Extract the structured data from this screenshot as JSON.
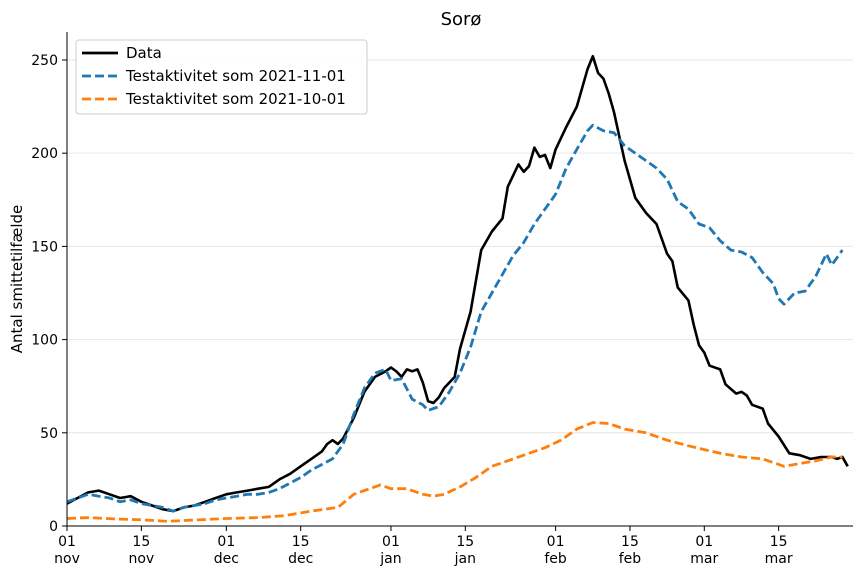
{
  "chart_data": {
    "type": "line",
    "title": "Sorø",
    "xlabel": "",
    "ylabel": "Antal smittetilfælde",
    "xlim": [
      "2021-11-01",
      "2022-03-29"
    ],
    "ylim": [
      0,
      265
    ],
    "grid": "horizontal",
    "legend_position": "top-left",
    "x_ticks": [
      {
        "date": "2021-11-01",
        "day": "01",
        "month": "nov"
      },
      {
        "date": "2021-11-15",
        "day": "15",
        "month": "nov"
      },
      {
        "date": "2021-12-01",
        "day": "01",
        "month": "dec"
      },
      {
        "date": "2021-12-15",
        "day": "15",
        "month": "dec"
      },
      {
        "date": "2022-01-01",
        "day": "01",
        "month": "jan"
      },
      {
        "date": "2022-01-15",
        "day": "15",
        "month": "jan"
      },
      {
        "date": "2022-02-01",
        "day": "01",
        "month": "feb"
      },
      {
        "date": "2022-02-15",
        "day": "15",
        "month": "feb"
      },
      {
        "date": "2022-03-01",
        "day": "01",
        "month": "mar"
      },
      {
        "date": "2022-03-15",
        "day": "15",
        "month": "mar"
      }
    ],
    "y_ticks": [
      0,
      50,
      100,
      150,
      200,
      250
    ],
    "series": [
      {
        "name": "Data",
        "color": "#000000",
        "style": "solid",
        "points": [
          [
            "2021-11-01",
            12
          ],
          [
            "2021-11-03",
            15
          ],
          [
            "2021-11-05",
            18
          ],
          [
            "2021-11-07",
            19
          ],
          [
            "2021-11-09",
            17
          ],
          [
            "2021-11-11",
            15
          ],
          [
            "2021-11-13",
            16
          ],
          [
            "2021-11-15",
            13
          ],
          [
            "2021-11-17",
            11
          ],
          [
            "2021-11-19",
            9
          ],
          [
            "2021-11-21",
            8
          ],
          [
            "2021-11-23",
            10
          ],
          [
            "2021-11-25",
            11
          ],
          [
            "2021-11-27",
            13
          ],
          [
            "2021-11-29",
            15
          ],
          [
            "2021-12-01",
            17
          ],
          [
            "2021-12-03",
            18
          ],
          [
            "2021-12-05",
            19
          ],
          [
            "2021-12-07",
            20
          ],
          [
            "2021-12-09",
            21
          ],
          [
            "2021-12-11",
            25
          ],
          [
            "2021-12-13",
            28
          ],
          [
            "2021-12-15",
            32
          ],
          [
            "2021-12-17",
            36
          ],
          [
            "2021-12-19",
            40
          ],
          [
            "2021-12-20",
            44
          ],
          [
            "2021-12-21",
            46
          ],
          [
            "2021-12-22",
            44
          ],
          [
            "2021-12-23",
            47
          ],
          [
            "2021-12-25",
            58
          ],
          [
            "2021-12-27",
            72
          ],
          [
            "2021-12-29",
            80
          ],
          [
            "2021-12-31",
            83
          ],
          [
            "2022-01-01",
            85
          ],
          [
            "2022-01-02",
            83
          ],
          [
            "2022-01-03",
            80
          ],
          [
            "2022-01-04",
            84
          ],
          [
            "2022-01-05",
            83
          ],
          [
            "2022-01-06",
            84
          ],
          [
            "2022-01-07",
            77
          ],
          [
            "2022-01-08",
            67
          ],
          [
            "2022-01-09",
            66
          ],
          [
            "2022-01-10",
            69
          ],
          [
            "2022-01-11",
            74
          ],
          [
            "2022-01-13",
            80
          ],
          [
            "2022-01-14",
            95
          ],
          [
            "2022-01-16",
            115
          ],
          [
            "2022-01-18",
            148
          ],
          [
            "2022-01-20",
            158
          ],
          [
            "2022-01-22",
            165
          ],
          [
            "2022-01-23",
            182
          ],
          [
            "2022-01-25",
            194
          ],
          [
            "2022-01-26",
            190
          ],
          [
            "2022-01-27",
            193
          ],
          [
            "2022-01-28",
            203
          ],
          [
            "2022-01-29",
            198
          ],
          [
            "2022-01-30",
            199
          ],
          [
            "2022-01-31",
            192
          ],
          [
            "2022-02-01",
            202
          ],
          [
            "2022-02-03",
            214
          ],
          [
            "2022-02-05",
            225
          ],
          [
            "2022-02-07",
            245
          ],
          [
            "2022-02-08",
            252
          ],
          [
            "2022-02-09",
            243
          ],
          [
            "2022-02-10",
            240
          ],
          [
            "2022-02-11",
            232
          ],
          [
            "2022-02-12",
            222
          ],
          [
            "2022-02-14",
            196
          ],
          [
            "2022-02-16",
            176
          ],
          [
            "2022-02-18",
            168
          ],
          [
            "2022-02-20",
            162
          ],
          [
            "2022-02-22",
            146
          ],
          [
            "2022-02-23",
            142
          ],
          [
            "2022-02-24",
            128
          ],
          [
            "2022-02-26",
            121
          ],
          [
            "2022-02-27",
            108
          ],
          [
            "2022-02-28",
            97
          ],
          [
            "2022-03-01",
            93
          ],
          [
            "2022-03-02",
            86
          ],
          [
            "2022-03-04",
            84
          ],
          [
            "2022-03-05",
            76
          ],
          [
            "2022-03-07",
            71
          ],
          [
            "2022-03-08",
            72
          ],
          [
            "2022-03-09",
            70
          ],
          [
            "2022-03-10",
            65
          ],
          [
            "2022-03-12",
            63
          ],
          [
            "2022-03-13",
            55
          ],
          [
            "2022-03-15",
            48
          ],
          [
            "2022-03-17",
            39
          ],
          [
            "2022-03-19",
            38
          ],
          [
            "2022-03-21",
            36
          ],
          [
            "2022-03-23",
            37
          ],
          [
            "2022-03-25",
            37
          ],
          [
            "2022-03-26",
            36
          ],
          [
            "2022-03-27",
            37
          ],
          [
            "2022-03-28",
            32
          ]
        ]
      },
      {
        "name": "Testaktivitet som 2021-11-01",
        "color": "#1f77b4",
        "style": "dashed",
        "points": [
          [
            "2021-11-01",
            13
          ],
          [
            "2021-11-03",
            15
          ],
          [
            "2021-11-05",
            17
          ],
          [
            "2021-11-07",
            16
          ],
          [
            "2021-11-09",
            15
          ],
          [
            "2021-11-11",
            13
          ],
          [
            "2021-11-13",
            14
          ],
          [
            "2021-11-15",
            12
          ],
          [
            "2021-11-17",
            11
          ],
          [
            "2021-11-19",
            10
          ],
          [
            "2021-11-21",
            8
          ],
          [
            "2021-11-23",
            10
          ],
          [
            "2021-11-25",
            11
          ],
          [
            "2021-11-27",
            12
          ],
          [
            "2021-11-29",
            14
          ],
          [
            "2021-12-01",
            15
          ],
          [
            "2021-12-03",
            16
          ],
          [
            "2021-12-05",
            17
          ],
          [
            "2021-12-07",
            17
          ],
          [
            "2021-12-09",
            18
          ],
          [
            "2021-12-11",
            20
          ],
          [
            "2021-12-13",
            23
          ],
          [
            "2021-12-15",
            26
          ],
          [
            "2021-12-17",
            30
          ],
          [
            "2021-12-19",
            33
          ],
          [
            "2021-12-21",
            36
          ],
          [
            "2021-12-23",
            44
          ],
          [
            "2021-12-25",
            60
          ],
          [
            "2021-12-27",
            74
          ],
          [
            "2021-12-29",
            82
          ],
          [
            "2021-12-31",
            84
          ],
          [
            "2022-01-01",
            78
          ],
          [
            "2022-01-03",
            79
          ],
          [
            "2022-01-05",
            68
          ],
          [
            "2022-01-07",
            65
          ],
          [
            "2022-01-08",
            62
          ],
          [
            "2022-01-10",
            64
          ],
          [
            "2022-01-12",
            72
          ],
          [
            "2022-01-14",
            82
          ],
          [
            "2022-01-16",
            96
          ],
          [
            "2022-01-18",
            115
          ],
          [
            "2022-01-20",
            125
          ],
          [
            "2022-01-22",
            135
          ],
          [
            "2022-01-24",
            145
          ],
          [
            "2022-01-26",
            152
          ],
          [
            "2022-01-28",
            162
          ],
          [
            "2022-01-30",
            170
          ],
          [
            "2022-02-01",
            178
          ],
          [
            "2022-02-03",
            192
          ],
          [
            "2022-02-05",
            202
          ],
          [
            "2022-02-07",
            212
          ],
          [
            "2022-02-08",
            215
          ],
          [
            "2022-02-10",
            212
          ],
          [
            "2022-02-12",
            211
          ],
          [
            "2022-02-14",
            204
          ],
          [
            "2022-02-16",
            200
          ],
          [
            "2022-02-18",
            196
          ],
          [
            "2022-02-20",
            192
          ],
          [
            "2022-02-22",
            186
          ],
          [
            "2022-02-24",
            174
          ],
          [
            "2022-02-26",
            170
          ],
          [
            "2022-02-28",
            162
          ],
          [
            "2022-03-02",
            160
          ],
          [
            "2022-03-04",
            153
          ],
          [
            "2022-03-06",
            148
          ],
          [
            "2022-03-08",
            147
          ],
          [
            "2022-03-10",
            144
          ],
          [
            "2022-03-12",
            136
          ],
          [
            "2022-03-14",
            130
          ],
          [
            "2022-03-15",
            122
          ],
          [
            "2022-03-16",
            119
          ],
          [
            "2022-03-18",
            125
          ],
          [
            "2022-03-20",
            126
          ],
          [
            "2022-03-22",
            134
          ],
          [
            "2022-03-24",
            146
          ],
          [
            "2022-03-25",
            140
          ],
          [
            "2022-03-27",
            148
          ]
        ]
      },
      {
        "name": "Testaktivitet som 2021-10-01",
        "color": "#ff7f0e",
        "style": "dashed",
        "points": [
          [
            "2021-11-01",
            4
          ],
          [
            "2021-11-05",
            4.5
          ],
          [
            "2021-11-10",
            3.8
          ],
          [
            "2021-11-15",
            3.3
          ],
          [
            "2021-11-20",
            2.5
          ],
          [
            "2021-11-25",
            3.2
          ],
          [
            "2021-12-01",
            4
          ],
          [
            "2021-12-07",
            4.5
          ],
          [
            "2021-12-12",
            5.5
          ],
          [
            "2021-12-17",
            8
          ],
          [
            "2021-12-22",
            10
          ],
          [
            "2021-12-25",
            17
          ],
          [
            "2021-12-28",
            20
          ],
          [
            "2021-12-30",
            22
          ],
          [
            "2022-01-01",
            20
          ],
          [
            "2022-01-04",
            20
          ],
          [
            "2022-01-07",
            17
          ],
          [
            "2022-01-09",
            16
          ],
          [
            "2022-01-11",
            17
          ],
          [
            "2022-01-14",
            21
          ],
          [
            "2022-01-17",
            26
          ],
          [
            "2022-01-20",
            32
          ],
          [
            "2022-01-23",
            35
          ],
          [
            "2022-01-26",
            38
          ],
          [
            "2022-01-30",
            42
          ],
          [
            "2022-02-02",
            46
          ],
          [
            "2022-02-05",
            52
          ],
          [
            "2022-02-08",
            55.5
          ],
          [
            "2022-02-11",
            55
          ],
          [
            "2022-02-14",
            52
          ],
          [
            "2022-02-18",
            50
          ],
          [
            "2022-02-22",
            46
          ],
          [
            "2022-02-26",
            43
          ],
          [
            "2022-03-01",
            41
          ],
          [
            "2022-03-04",
            39
          ],
          [
            "2022-03-08",
            37
          ],
          [
            "2022-03-12",
            36
          ],
          [
            "2022-03-16",
            32
          ],
          [
            "2022-03-18",
            33
          ],
          [
            "2022-03-22",
            35
          ],
          [
            "2022-03-25",
            37
          ],
          [
            "2022-03-27",
            37
          ]
        ]
      }
    ]
  }
}
